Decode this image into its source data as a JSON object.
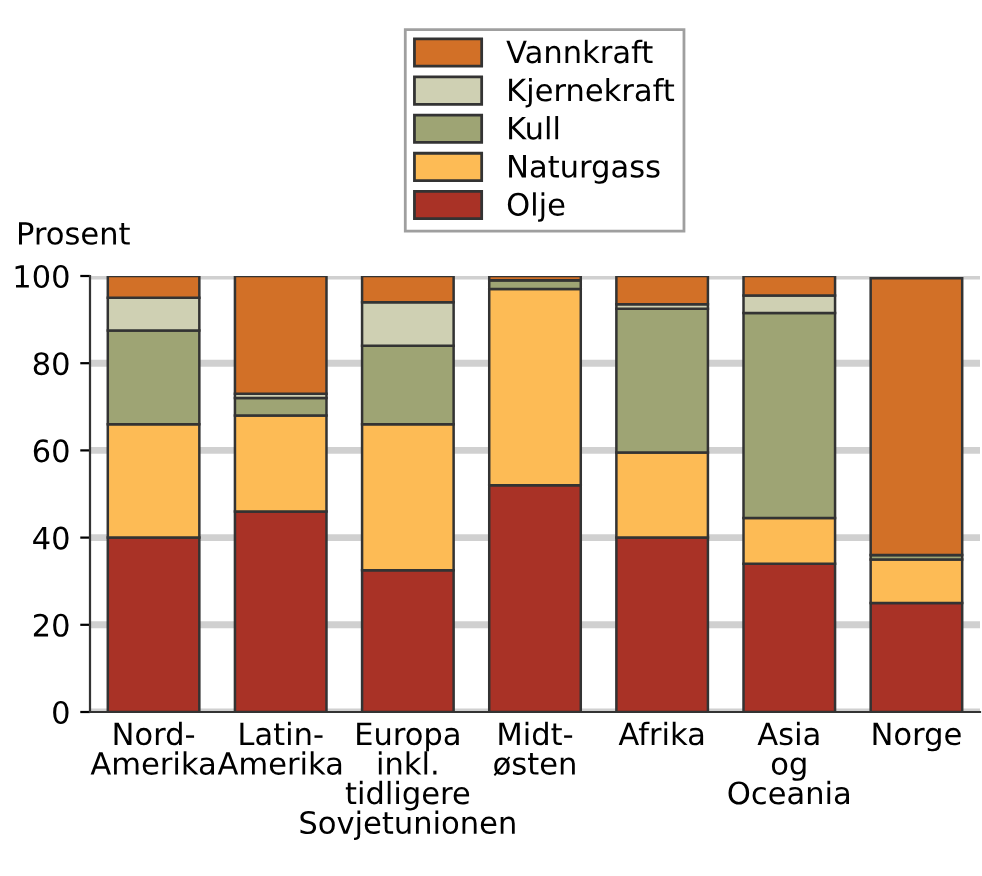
{
  "chart_data": {
    "type": "bar",
    "stacked": true,
    "ylabel": "Prosent",
    "categories": [
      "Nord-\nAmerika",
      "Latin-\nAmerika",
      "Europa\ninkl.\ntidligere\nSovjetunionen",
      "Midt-\nøsten",
      "Afrika",
      "Asia\nog\nOceania",
      "Norge"
    ],
    "series": [
      {
        "name": "Olje",
        "color": "#a93226",
        "values": [
          40,
          46,
          32.5,
          52,
          40,
          34,
          25
        ]
      },
      {
        "name": "Naturgass",
        "color": "#fdbb55",
        "values": [
          26,
          22,
          33.5,
          45,
          19.5,
          10.5,
          10
        ]
      },
      {
        "name": "Kull",
        "color": "#9ea474",
        "values": [
          21.5,
          4,
          18,
          2,
          33,
          47,
          1
        ]
      },
      {
        "name": "Kjernekraft",
        "color": "#cfd0b3",
        "values": [
          7.5,
          1,
          10,
          0,
          1,
          4,
          null
        ]
      },
      {
        "name": "Vannkraft",
        "color": "#d27027",
        "values": [
          5,
          27,
          6,
          1,
          6.5,
          4.5,
          63.5
        ]
      }
    ],
    "ylim": [
      0,
      100
    ],
    "yticks": [
      0,
      20,
      40,
      60,
      80,
      100
    ],
    "grid": "y",
    "legend": "top"
  }
}
